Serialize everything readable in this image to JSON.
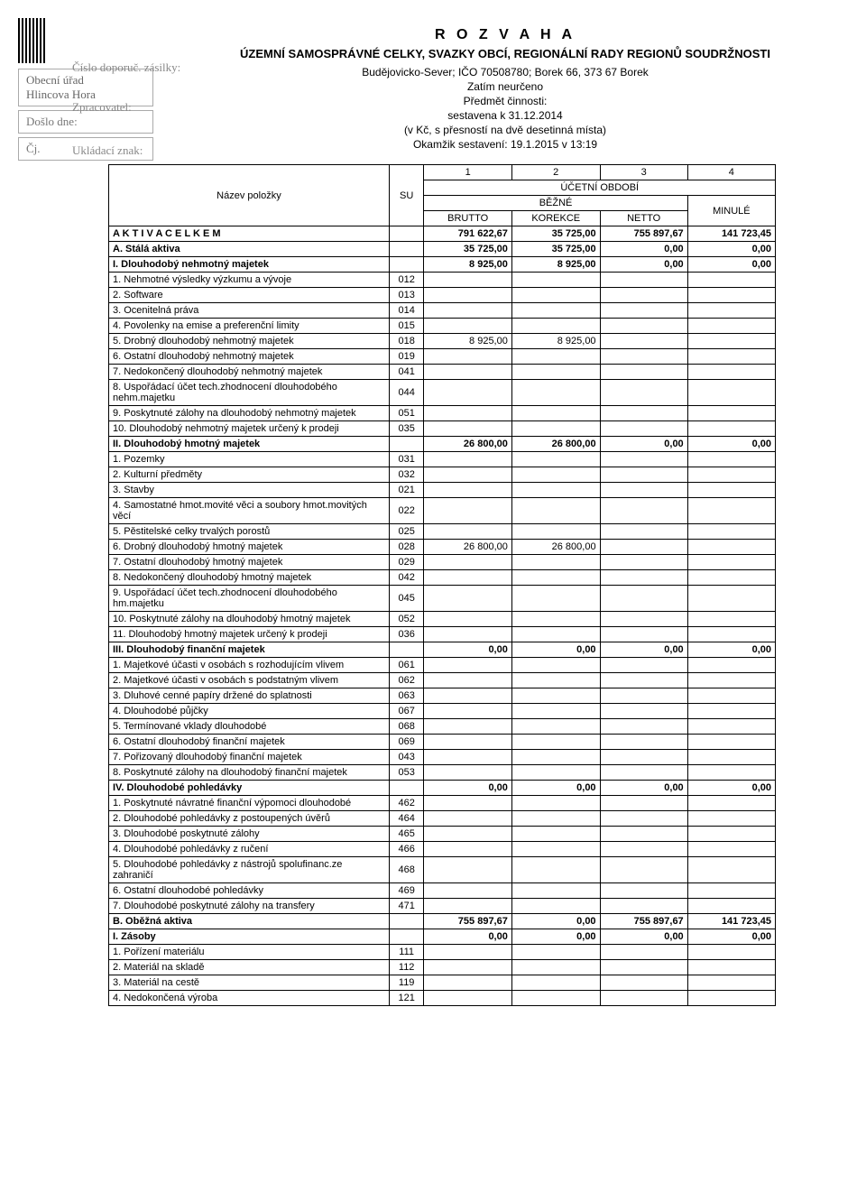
{
  "stamp": {
    "office": "Obecní úřad",
    "town": "Hlincova Hora",
    "doslo": "Došlo dne:",
    "cj": "Čj.",
    "cislo": "Číslo doporuč. zásilky:",
    "zpracovatel": "Zpracovatel:",
    "ukladaci": "Ukládací znak:"
  },
  "header": {
    "title": "R O Z V A H A",
    "subtitle": "ÚZEMNÍ SAMOSPRÁVNÉ CELKY, SVAZKY OBCÍ, REGIONÁLNÍ RADY REGIONŮ SOUDRŽNOSTI",
    "org": "Budějovicko-Sever;  IČO 70508780;  Borek 66, 373 67  Borek",
    "legal": "Zatím neurčeno",
    "subject_label": "Předmět činnosti:",
    "date": "sestavena k 31.12.2014",
    "precision": "(v Kč, s přesností na dvě desetinná místa)",
    "moment": "Okamžik sestavení: 19.1.2015 v 13:19"
  },
  "colhead": {
    "name": "Název položky",
    "su": "SU",
    "col1": "1",
    "col2": "2",
    "col3": "3",
    "col4": "4",
    "period": "ÚČETNÍ OBDOBÍ",
    "current": "BĚŽNÉ",
    "prev": "MINULÉ",
    "brutto": "BRUTTO",
    "korekce": "KOREKCE",
    "netto": "NETTO"
  },
  "rows": [
    {
      "bold": true,
      "name": "A K T I V A  C E L K E M",
      "su": "",
      "v": [
        "791 622,67",
        "35 725,00",
        "755 897,67",
        "141 723,45"
      ]
    },
    {
      "bold": true,
      "name": "A.   Stálá aktiva",
      "su": "",
      "v": [
        "35 725,00",
        "35 725,00",
        "0,00",
        "0,00"
      ]
    },
    {
      "bold": true,
      "name": "I.   Dlouhodobý nehmotný majetek",
      "su": "",
      "v": [
        "8 925,00",
        "8 925,00",
        "0,00",
        "0,00"
      ]
    },
    {
      "name": "1. Nehmotné výsledky výzkumu a vývoje",
      "su": "012",
      "v": [
        "",
        "",
        "",
        ""
      ]
    },
    {
      "name": "2. Software",
      "su": "013",
      "v": [
        "",
        "",
        "",
        ""
      ]
    },
    {
      "name": "3. Ocenitelná práva",
      "su": "014",
      "v": [
        "",
        "",
        "",
        ""
      ]
    },
    {
      "name": "4. Povolenky na emise a preferenční limity",
      "su": "015",
      "v": [
        "",
        "",
        "",
        ""
      ]
    },
    {
      "name": "5. Drobný dlouhodobý nehmotný majetek",
      "su": "018",
      "v": [
        "8 925,00",
        "8 925,00",
        "",
        ""
      ]
    },
    {
      "name": "6. Ostatní dlouhodobý nehmotný majetek",
      "su": "019",
      "v": [
        "",
        "",
        "",
        ""
      ]
    },
    {
      "name": "7. Nedokončený dlouhodobý nehmotný majetek",
      "su": "041",
      "v": [
        "",
        "",
        "",
        ""
      ]
    },
    {
      "name": "8. Uspořádací účet tech.zhodnocení dlouhodobého nehm.majetku",
      "su": "044",
      "v": [
        "",
        "",
        "",
        ""
      ]
    },
    {
      "name": "9. Poskytnuté zálohy na dlouhodobý nehmotný majetek",
      "su": "051",
      "v": [
        "",
        "",
        "",
        ""
      ]
    },
    {
      "name": "10. Dlouhodobý nehmotný majetek určený k prodeji",
      "su": "035",
      "v": [
        "",
        "",
        "",
        ""
      ]
    },
    {
      "bold": true,
      "name": "II.  Dlouhodobý hmotný majetek",
      "su": "",
      "v": [
        "26 800,00",
        "26 800,00",
        "0,00",
        "0,00"
      ]
    },
    {
      "name": "1. Pozemky",
      "su": "031",
      "v": [
        "",
        "",
        "",
        ""
      ]
    },
    {
      "name": "2. Kulturní předměty",
      "su": "032",
      "v": [
        "",
        "",
        "",
        ""
      ]
    },
    {
      "name": "3. Stavby",
      "su": "021",
      "v": [
        "",
        "",
        "",
        ""
      ]
    },
    {
      "name": "4. Samostatné hmot.movité věci a soubory hmot.movitých věcí",
      "su": "022",
      "v": [
        "",
        "",
        "",
        ""
      ]
    },
    {
      "name": "5. Pěstitelské celky trvalých porostů",
      "su": "025",
      "v": [
        "",
        "",
        "",
        ""
      ]
    },
    {
      "name": "6. Drobný dlouhodobý hmotný majetek",
      "su": "028",
      "v": [
        "26 800,00",
        "26 800,00",
        "",
        ""
      ]
    },
    {
      "name": "7. Ostatní dlouhodobý hmotný majetek",
      "su": "029",
      "v": [
        "",
        "",
        "",
        ""
      ]
    },
    {
      "name": "8. Nedokončený dlouhodobý hmotný majetek",
      "su": "042",
      "v": [
        "",
        "",
        "",
        ""
      ]
    },
    {
      "name": "9. Uspořádací účet tech.zhodnocení dlouhodobého hm.majetku",
      "su": "045",
      "v": [
        "",
        "",
        "",
        ""
      ]
    },
    {
      "name": "10. Poskytnuté zálohy na dlouhodobý hmotný majetek",
      "su": "052",
      "v": [
        "",
        "",
        "",
        ""
      ]
    },
    {
      "name": "11. Dlouhodobý hmotný majetek určený k prodeji",
      "su": "036",
      "v": [
        "",
        "",
        "",
        ""
      ]
    },
    {
      "bold": true,
      "name": "III. Dlouhodobý finanční majetek",
      "su": "",
      "v": [
        "0,00",
        "0,00",
        "0,00",
        "0,00"
      ]
    },
    {
      "name": "1. Majetkové účasti v osobách s rozhodujícím vlivem",
      "su": "061",
      "v": [
        "",
        "",
        "",
        ""
      ]
    },
    {
      "name": "2. Majetkové účasti v osobách s podstatným vlivem",
      "su": "062",
      "v": [
        "",
        "",
        "",
        ""
      ]
    },
    {
      "name": "3. Dluhové cenné papíry držené do splatnosti",
      "su": "063",
      "v": [
        "",
        "",
        "",
        ""
      ]
    },
    {
      "name": "4. Dlouhodobé půjčky",
      "su": "067",
      "v": [
        "",
        "",
        "",
        ""
      ]
    },
    {
      "name": "5. Termínované vklady dlouhodobé",
      "su": "068",
      "v": [
        "",
        "",
        "",
        ""
      ]
    },
    {
      "name": "6. Ostatní dlouhodobý finanční majetek",
      "su": "069",
      "v": [
        "",
        "",
        "",
        ""
      ]
    },
    {
      "name": "7. Pořizovaný dlouhodobý finanční majetek",
      "su": "043",
      "v": [
        "",
        "",
        "",
        ""
      ]
    },
    {
      "name": "8. Poskytnuté zálohy na dlouhodobý finanční majetek",
      "su": "053",
      "v": [
        "",
        "",
        "",
        ""
      ]
    },
    {
      "bold": true,
      "name": "IV. Dlouhodobé pohledávky",
      "su": "",
      "v": [
        "0,00",
        "0,00",
        "0,00",
        "0,00"
      ]
    },
    {
      "name": "1. Poskytnuté návratné finanční výpomoci dlouhodobé",
      "su": "462",
      "v": [
        "",
        "",
        "",
        ""
      ]
    },
    {
      "name": "2. Dlouhodobé pohledávky z postoupených úvěrů",
      "su": "464",
      "v": [
        "",
        "",
        "",
        ""
      ]
    },
    {
      "name": "3. Dlouhodobé poskytnuté zálohy",
      "su": "465",
      "v": [
        "",
        "",
        "",
        ""
      ]
    },
    {
      "name": "4. Dlouhodobé pohledávky z ručení",
      "su": "466",
      "v": [
        "",
        "",
        "",
        ""
      ]
    },
    {
      "name": "5. Dlouhodobé pohledávky z nástrojů spolufinanc.ze zahraničí",
      "su": "468",
      "v": [
        "",
        "",
        "",
        ""
      ]
    },
    {
      "name": "6. Ostatní dlouhodobé pohledávky",
      "su": "469",
      "v": [
        "",
        "",
        "",
        ""
      ]
    },
    {
      "name": "7. Dlouhodobé poskytnuté zálohy na transfery",
      "su": "471",
      "v": [
        "",
        "",
        "",
        ""
      ]
    },
    {
      "bold": true,
      "name": "B.   Oběžná aktiva",
      "su": "",
      "v": [
        "755 897,67",
        "0,00",
        "755 897,67",
        "141 723,45"
      ]
    },
    {
      "bold": true,
      "name": "I.   Zásoby",
      "su": "",
      "v": [
        "0,00",
        "0,00",
        "0,00",
        "0,00"
      ]
    },
    {
      "name": "1. Pořízení materiálu",
      "su": "111",
      "v": [
        "",
        "",
        "",
        ""
      ]
    },
    {
      "name": "2. Materiál na skladě",
      "su": "112",
      "v": [
        "",
        "",
        "",
        ""
      ]
    },
    {
      "name": "3. Materiál na cestě",
      "su": "119",
      "v": [
        "",
        "",
        "",
        ""
      ]
    },
    {
      "name": "4. Nedokončená výroba",
      "su": "121",
      "v": [
        "",
        "",
        "",
        ""
      ]
    }
  ]
}
